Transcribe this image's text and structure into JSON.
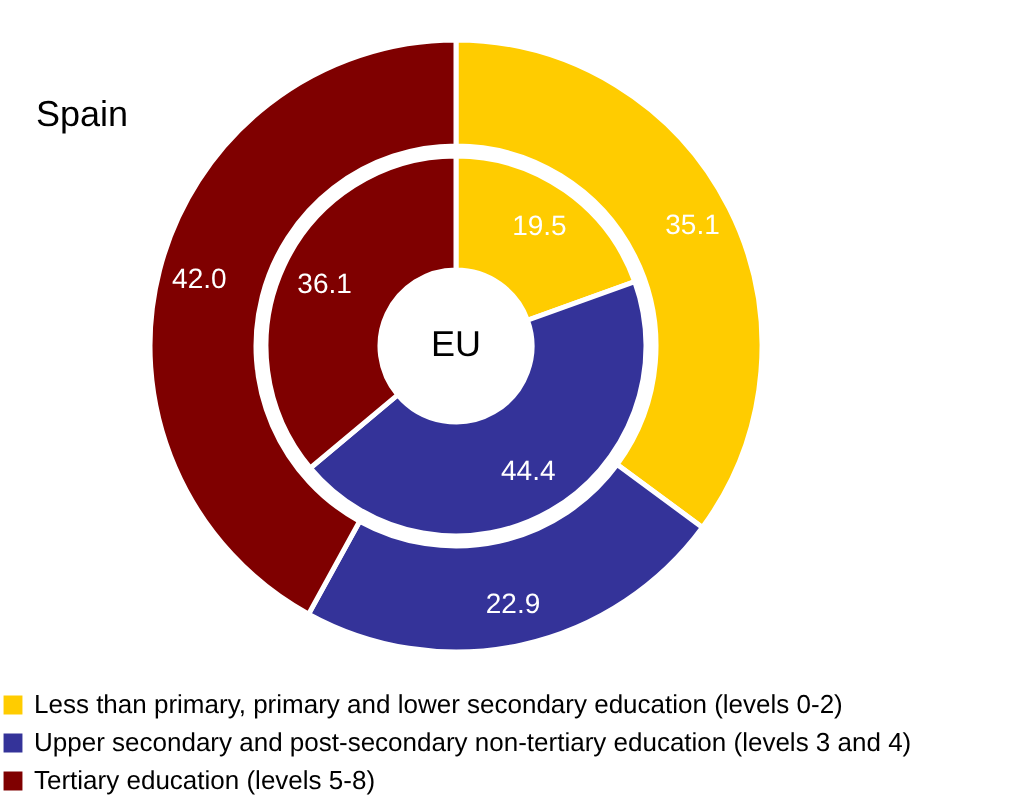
{
  "chart_data": {
    "type": "donut",
    "categories": [
      "Less than primary, primary and lower secondary education (levels 0-2)",
      "Upper secondary and post-secondary non-tertiary education (levels 3 and 4)",
      "Tertiary education (levels 5-8)"
    ],
    "colors": [
      "#ffcc00",
      "#343399",
      "#7f0000"
    ],
    "series": [
      {
        "name": "Spain",
        "values": [
          35.1,
          22.9,
          42.0
        ],
        "value_labels": [
          "35.1",
          "22.9",
          "42.0"
        ]
      },
      {
        "name": "EU",
        "values": [
          19.5,
          44.4,
          36.1
        ],
        "value_labels": [
          "19.5",
          "44.4",
          "36.1"
        ]
      }
    ],
    "legend": "bottom left"
  }
}
